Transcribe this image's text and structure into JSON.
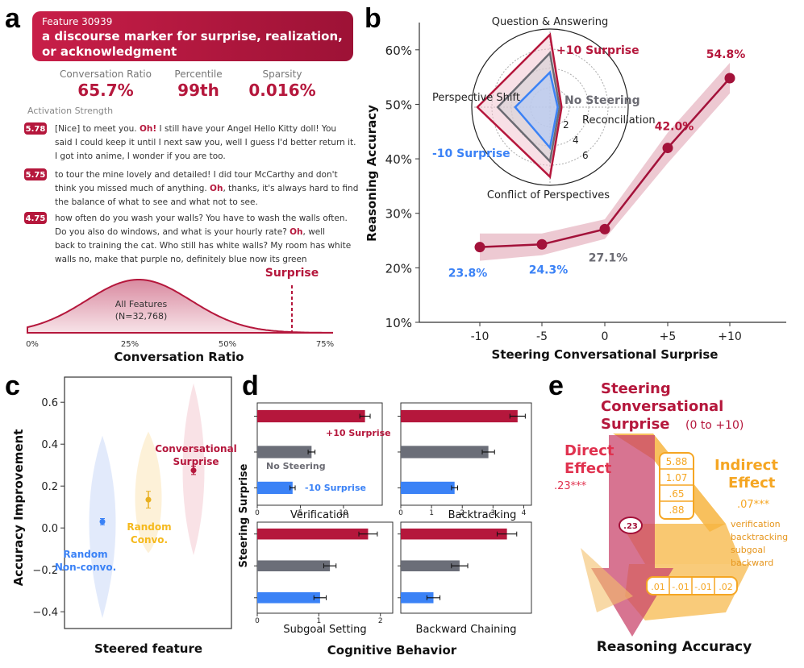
{
  "panel_letters": {
    "a": "a",
    "b": "b",
    "c": "c",
    "d": "d",
    "e": "e"
  },
  "colors": {
    "red": "#b5173c",
    "blue": "#3b82f6",
    "gray": "#6b6b73",
    "orange": "#f5a623",
    "pink": "#e8b4c0",
    "darkred": "#a3123a"
  },
  "panel_a": {
    "feature_id": "Feature 30939",
    "feature_desc_1": "a discourse marker for surprise, realization,",
    "feature_desc_2": "or acknowledgment",
    "stats": [
      {
        "label": "Conversation Ratio",
        "value": "65.7%"
      },
      {
        "label": "Percentile",
        "value": "99th"
      },
      {
        "label": "Sparsity",
        "value": "0.016%"
      }
    ],
    "activation_label": "Activation Strength",
    "examples": [
      {
        "score": "5.78",
        "lines": [
          [
            "[Nice] to meet you. ",
            "Oh!",
            " I still have your Angel Hello Kitty doll! You"
          ],
          [
            "said I could keep it until I next saw you, well I guess I'd better return it.",
            "",
            ""
          ],
          [
            "I got into anime, I wonder if you are too.",
            "",
            ""
          ]
        ]
      },
      {
        "score": "5.75",
        "lines": [
          [
            "to tour the mine    lovely and detailed! I did tour McCarthy and don't",
            "",
            ""
          ],
          [
            "think you missed much of anything. ",
            "Oh",
            ", thanks, it's always hard to find"
          ],
          [
            "the balance of what to see and what not to see.",
            "",
            ""
          ]
        ]
      },
      {
        "score": "4.75",
        "lines": [
          [
            "how often do you wash your walls? You have to wash the walls often.",
            "",
            ""
          ],
          [
            "Do you also do windows, and what is your hourly rate? ",
            "Oh",
            ", well"
          ],
          [
            "back to training the cat. Who still has white walls? My room has white",
            "",
            ""
          ],
          [
            "walls     no, make that purple     no, definitely blue     now its green",
            "",
            ""
          ]
        ]
      }
    ],
    "dist_label_1": "All Features",
    "dist_label_2": "(N=32,768)",
    "surprise_label": "Surprise",
    "x_ticks": [
      "0%",
      "25%",
      "50%",
      "75%"
    ],
    "x_title": "Conversation Ratio"
  },
  "chart_data": [
    {
      "id": "b",
      "type": "line",
      "x": [
        -10,
        -5,
        0,
        5,
        10
      ],
      "x_tick_labels": [
        "-10",
        "-5",
        "0",
        "+5",
        "+10"
      ],
      "values": [
        23.8,
        24.3,
        27.1,
        42.0,
        54.8
      ],
      "value_labels": [
        "23.8%",
        "24.3%",
        "27.1%",
        "42.0%",
        "54.8%"
      ],
      "ci_half": [
        2.5,
        2.0,
        1.8,
        2.8,
        2.8
      ],
      "ylim": [
        10,
        65
      ],
      "y_ticks": [
        10,
        20,
        30,
        40,
        50,
        60
      ],
      "y_tick_labels": [
        "10%",
        "20%",
        "30%",
        "40%",
        "50%",
        "60%"
      ],
      "xlabel": "Steering Conversational Surprise",
      "ylabel": "Reasoning Accuracy"
    },
    {
      "id": "b_inset",
      "type": "radar",
      "axes": [
        "Question & Answering",
        "Reconciliation",
        "Conflict of Perspectives",
        "Perspective Shift"
      ],
      "rings": [
        2,
        4,
        6
      ],
      "max": 8,
      "series": [
        {
          "name": "+10 Surprise",
          "values": [
            7.5,
            1.2,
            7.2,
            7.5
          ]
        },
        {
          "name": "No Steering",
          "values": [
            5.6,
            1.0,
            5.6,
            5.4
          ]
        },
        {
          "name": "-10 Surprise",
          "values": [
            3.6,
            0.8,
            4.2,
            3.6
          ]
        }
      ]
    },
    {
      "id": "c",
      "type": "violin",
      "groups": [
        {
          "name_1": "Random",
          "name_2": "Non-convo.",
          "mean": 0.03,
          "err": 0.015,
          "range": [
            -0.43,
            0.44
          ]
        },
        {
          "name_1": "Random",
          "name_2": "Convo.",
          "mean": 0.135,
          "err": 0.04,
          "range": [
            -0.12,
            0.46
          ]
        },
        {
          "name_1": "Conversational",
          "name_2": "Surprise",
          "mean": 0.275,
          "err": 0.02,
          "range": [
            -0.13,
            0.69
          ]
        }
      ],
      "ylim": [
        -0.48,
        0.72
      ],
      "y_ticks": [
        -0.4,
        -0.2,
        0.0,
        0.2,
        0.4,
        0.6
      ],
      "y_tick_labels": [
        "−0.4",
        "−0.2",
        "0.0",
        "0.2",
        "0.4",
        "0.6"
      ],
      "ylabel": "Accuracy Improvement",
      "xlabel": "Steered feature"
    },
    {
      "id": "d",
      "type": "bar",
      "series_names": [
        "+10 Surprise",
        "No Steering",
        "-10 Surprise"
      ],
      "panels": [
        {
          "title": "Verification",
          "values": [
            12.5,
            6.3,
            4.1
          ],
          "errs": [
            0.6,
            0.4,
            0.3
          ],
          "xmax": 14.5,
          "ticks": [
            0,
            5,
            10
          ],
          "tick_labels": [
            "0",
            "5",
            "10"
          ]
        },
        {
          "title": "Backtracking",
          "values": [
            3.8,
            2.85,
            1.75
          ],
          "errs": [
            0.25,
            0.2,
            0.1
          ],
          "xmax": 4.25,
          "ticks": [
            0,
            1,
            2,
            3,
            4
          ],
          "tick_labels": [
            "0",
            "1",
            "2",
            "3",
            "4"
          ]
        },
        {
          "title": "Subgoal Setting",
          "values": [
            1.8,
            1.18,
            1.02
          ],
          "errs": [
            0.15,
            0.1,
            0.1
          ],
          "xmax": 2.2,
          "ticks": [
            0,
            1,
            2
          ],
          "tick_labels": [
            "0",
            "1",
            "2"
          ]
        },
        {
          "title": "Backward Chaining",
          "values": [
            0.65,
            0.36,
            0.2
          ],
          "errs": [
            0.06,
            0.05,
            0.04
          ],
          "xmax": 0.8,
          "ticks": [],
          "tick_labels": []
        }
      ],
      "ylabel": "Steering Surprise",
      "xlabel": "Cognitive Behavior"
    }
  ],
  "panel_e": {
    "title_1": "Steering",
    "title_2": "Conversational",
    "title_3": "Surprise",
    "title_range": "(0 to +10)",
    "direct_1": "Direct",
    "direct_2": "Effect",
    "direct_value": ".23***",
    "indirect_1": "Indirect",
    "indirect_2": "Effect",
    "indirect_value": ".07***",
    "mediators": [
      "verification",
      "backtracking",
      "subgoal",
      "backward"
    ],
    "a_paths": [
      "5.88",
      "1.07",
      ".65",
      ".88"
    ],
    "b_paths": [
      ".01",
      "-.01",
      "-.01",
      ".02"
    ],
    "direct_badge": ".23",
    "outcome": "Reasoning Accuracy"
  }
}
